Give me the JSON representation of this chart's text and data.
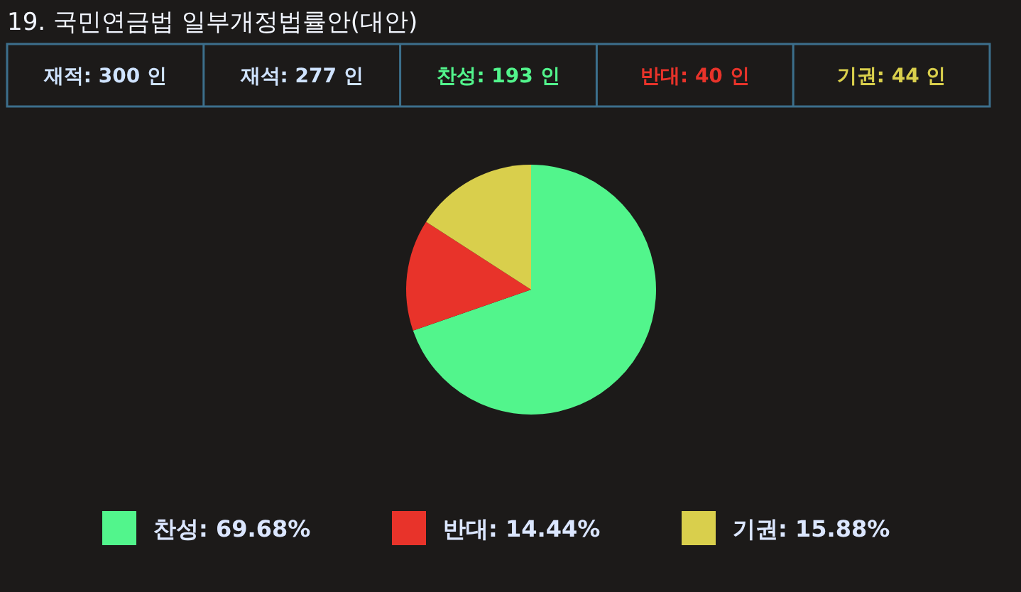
{
  "chart_data": {
    "type": "pie",
    "title": "19. 국민연금법 일부개정법률안(대안)",
    "annotations": [
      "재적: 300 인",
      "재석: 277 인",
      "찬성: 193 인",
      "반대: 40 인",
      "기권: 44 인"
    ],
    "categories": [
      "찬성",
      "반대",
      "기권"
    ],
    "values": [
      69.68,
      14.44,
      15.88
    ],
    "colors": [
      "#52f58c",
      "#e8332a",
      "#d9cf4c"
    ],
    "value_labels": [
      "69.68%",
      "14.44%",
      "15.88%"
    ],
    "legend": "bottom"
  }
}
